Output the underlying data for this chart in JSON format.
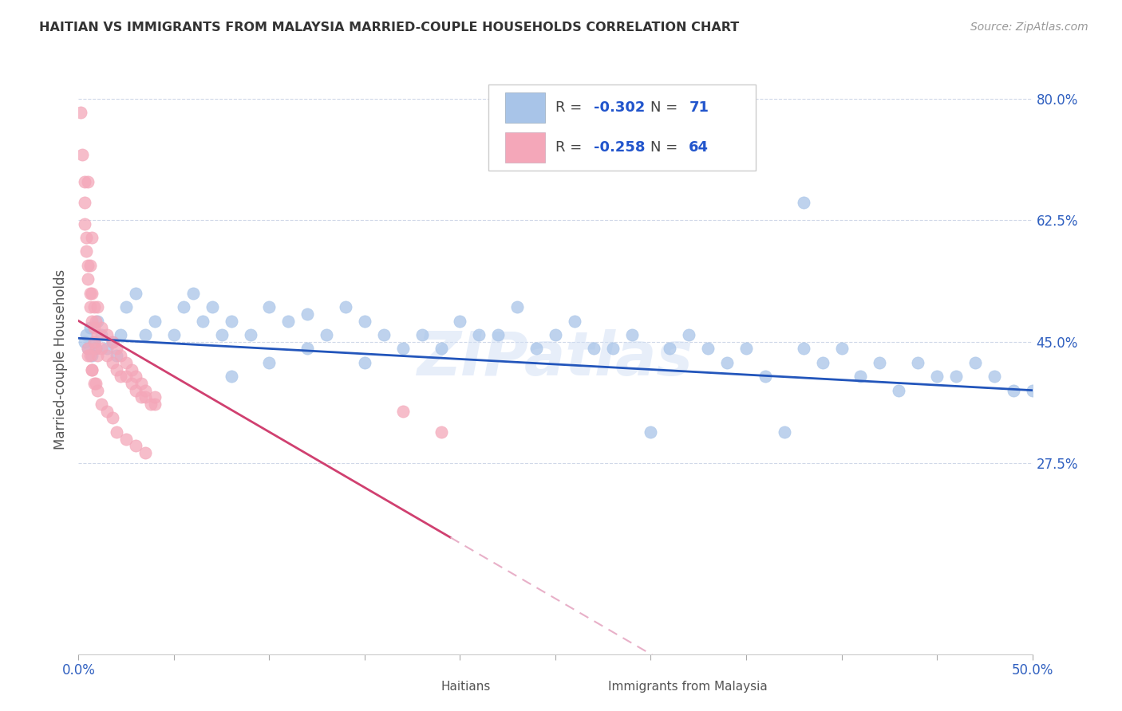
{
  "title": "HAITIAN VS IMMIGRANTS FROM MALAYSIA MARRIED-COUPLE HOUSEHOLDS CORRELATION CHART",
  "source": "Source: ZipAtlas.com",
  "ylabel": "Married-couple Households",
  "xlim": [
    0.0,
    0.5
  ],
  "ylim": [
    0.0,
    0.85
  ],
  "xtick_vals": [
    0.0,
    0.05,
    0.1,
    0.15,
    0.2,
    0.25,
    0.3,
    0.35,
    0.4,
    0.45,
    0.5
  ],
  "xtick_labels_show": {
    "0.0": "0.0%",
    "0.50": "50.0%"
  },
  "ytick_vals": [
    0.275,
    0.45,
    0.625,
    0.8
  ],
  "ytick_labels": [
    "27.5%",
    "45.0%",
    "62.5%",
    "80.0%"
  ],
  "blue_R": -0.302,
  "blue_N": 71,
  "pink_R": -0.258,
  "pink_N": 64,
  "blue_color": "#a8c4e8",
  "pink_color": "#f4a7b9",
  "blue_line_color": "#2255bb",
  "pink_line_color": "#d04070",
  "pink_dash_color": "#e8b0c8",
  "watermark": "ZIPatlas",
  "blue_x": [
    0.003,
    0.004,
    0.005,
    0.006,
    0.007,
    0.008,
    0.009,
    0.01,
    0.012,
    0.015,
    0.018,
    0.02,
    0.022,
    0.025,
    0.03,
    0.035,
    0.04,
    0.05,
    0.055,
    0.06,
    0.065,
    0.07,
    0.075,
    0.08,
    0.09,
    0.1,
    0.11,
    0.12,
    0.13,
    0.14,
    0.15,
    0.16,
    0.17,
    0.18,
    0.19,
    0.2,
    0.21,
    0.22,
    0.23,
    0.24,
    0.25,
    0.26,
    0.27,
    0.28,
    0.29,
    0.3,
    0.31,
    0.32,
    0.33,
    0.34,
    0.35,
    0.36,
    0.37,
    0.38,
    0.39,
    0.4,
    0.41,
    0.42,
    0.43,
    0.44,
    0.45,
    0.46,
    0.47,
    0.48,
    0.49,
    0.5,
    0.08,
    0.1,
    0.12,
    0.15,
    0.38
  ],
  "blue_y": [
    0.45,
    0.46,
    0.44,
    0.47,
    0.43,
    0.45,
    0.44,
    0.48,
    0.46,
    0.44,
    0.45,
    0.43,
    0.46,
    0.5,
    0.52,
    0.46,
    0.48,
    0.46,
    0.5,
    0.52,
    0.48,
    0.5,
    0.46,
    0.48,
    0.46,
    0.5,
    0.48,
    0.49,
    0.46,
    0.5,
    0.48,
    0.46,
    0.44,
    0.46,
    0.44,
    0.48,
    0.46,
    0.46,
    0.5,
    0.44,
    0.46,
    0.48,
    0.44,
    0.44,
    0.46,
    0.32,
    0.44,
    0.46,
    0.44,
    0.42,
    0.44,
    0.4,
    0.32,
    0.44,
    0.42,
    0.44,
    0.4,
    0.42,
    0.38,
    0.42,
    0.4,
    0.4,
    0.42,
    0.4,
    0.38,
    0.38,
    0.4,
    0.42,
    0.44,
    0.42,
    0.65
  ],
  "pink_x": [
    0.001,
    0.002,
    0.003,
    0.003,
    0.003,
    0.004,
    0.004,
    0.005,
    0.005,
    0.005,
    0.006,
    0.006,
    0.006,
    0.007,
    0.007,
    0.007,
    0.008,
    0.008,
    0.008,
    0.009,
    0.009,
    0.01,
    0.01,
    0.01,
    0.012,
    0.012,
    0.015,
    0.015,
    0.018,
    0.018,
    0.02,
    0.02,
    0.022,
    0.022,
    0.025,
    0.025,
    0.028,
    0.028,
    0.03,
    0.03,
    0.033,
    0.033,
    0.035,
    0.035,
    0.038,
    0.04,
    0.04,
    0.005,
    0.006,
    0.007,
    0.008,
    0.01,
    0.012,
    0.015,
    0.018,
    0.02,
    0.025,
    0.03,
    0.035,
    0.17,
    0.19,
    0.005,
    0.007,
    0.009
  ],
  "pink_y": [
    0.78,
    0.72,
    0.68,
    0.65,
    0.62,
    0.6,
    0.58,
    0.56,
    0.54,
    0.68,
    0.52,
    0.56,
    0.5,
    0.48,
    0.52,
    0.6,
    0.47,
    0.5,
    0.45,
    0.44,
    0.48,
    0.43,
    0.46,
    0.5,
    0.44,
    0.47,
    0.43,
    0.46,
    0.42,
    0.45,
    0.41,
    0.44,
    0.4,
    0.43,
    0.4,
    0.42,
    0.39,
    0.41,
    0.38,
    0.4,
    0.37,
    0.39,
    0.37,
    0.38,
    0.36,
    0.36,
    0.37,
    0.44,
    0.43,
    0.41,
    0.39,
    0.38,
    0.36,
    0.35,
    0.34,
    0.32,
    0.31,
    0.3,
    0.29,
    0.35,
    0.32,
    0.43,
    0.41,
    0.39
  ]
}
